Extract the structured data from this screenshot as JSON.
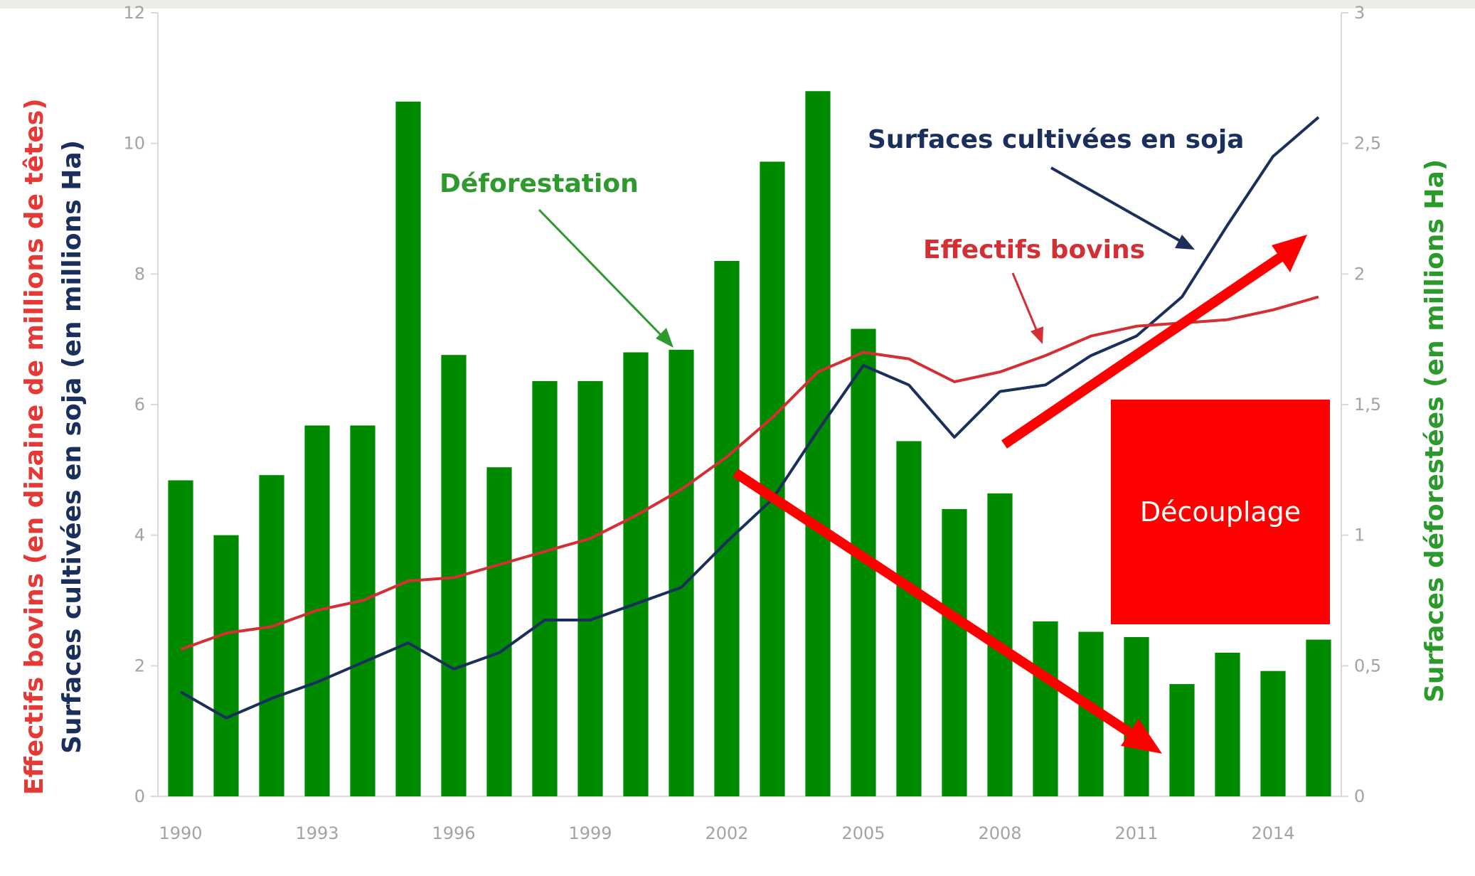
{
  "chart_data": {
    "type": "bar",
    "years": [
      1990,
      1991,
      1992,
      1993,
      1994,
      1995,
      1996,
      1997,
      1998,
      1999,
      2000,
      2001,
      2002,
      2003,
      2004,
      2005,
      2006,
      2007,
      2008,
      2009,
      2010,
      2011,
      2012,
      2013,
      2014,
      2015
    ],
    "x_tick_labels": [
      "1990",
      "1993",
      "1996",
      "1999",
      "2002",
      "2005",
      "2008",
      "2011",
      "2014"
    ],
    "y_left_ticks": [
      "0",
      "2",
      "4",
      "6",
      "8",
      "10",
      "12"
    ],
    "y_right_ticks": [
      "0",
      "0,5",
      "1",
      "1,5",
      "2",
      "2,5",
      "3"
    ],
    "ylim_left": [
      0,
      12
    ],
    "ylim_right": [
      0,
      3
    ],
    "ylabel_left_red": "Effectifs bovins (en dizaine de millions de têtes)",
    "ylabel_left_navy": "Surfaces cultivées en soja (en millions Ha)",
    "ylabel_right": "Surfaces déforestées (en millions Ha)",
    "grid": false,
    "series": [
      {
        "name": "Déforestation",
        "kind": "bar",
        "axis": "right",
        "color": "#008a00",
        "values": [
          1.21,
          1.0,
          1.23,
          1.42,
          1.42,
          2.66,
          1.69,
          1.26,
          1.59,
          1.59,
          1.7,
          1.71,
          2.05,
          2.43,
          2.7,
          1.79,
          1.36,
          1.1,
          1.16,
          0.67,
          0.63,
          0.61,
          0.43,
          0.55,
          0.48,
          0.6
        ]
      },
      {
        "name": "Surfaces cultivées en soja",
        "kind": "line",
        "axis": "left",
        "color": "#1a2f5c",
        "values": [
          1.6,
          1.2,
          1.5,
          1.75,
          2.05,
          2.35,
          1.95,
          2.2,
          2.7,
          2.7,
          2.95,
          3.2,
          3.9,
          4.55,
          5.6,
          6.6,
          6.3,
          5.5,
          6.2,
          6.3,
          6.75,
          7.05,
          7.65,
          8.75,
          9.8,
          10.4
        ]
      },
      {
        "name": "Effectifs bovins",
        "kind": "line",
        "axis": "left",
        "color": "#d32f35",
        "values": [
          2.25,
          2.5,
          2.6,
          2.85,
          3.0,
          3.3,
          3.35,
          3.55,
          3.75,
          3.95,
          4.3,
          4.7,
          5.2,
          5.8,
          6.5,
          6.8,
          6.7,
          6.35,
          6.5,
          6.75,
          7.05,
          7.2,
          7.25,
          7.3,
          7.45,
          7.65
        ]
      }
    ],
    "annotations": [
      {
        "text": "Déforestation",
        "color": "#2e9a2e"
      },
      {
        "text": "Surfaces cultivées en soja",
        "color": "#1a2f5c"
      },
      {
        "text": "Effectifs bovins",
        "color": "#d32f35"
      },
      {
        "text": "Découplage",
        "color": "#ffffff",
        "box_color": "#ff0000"
      }
    ],
    "arrow_color": "#ff0000"
  }
}
